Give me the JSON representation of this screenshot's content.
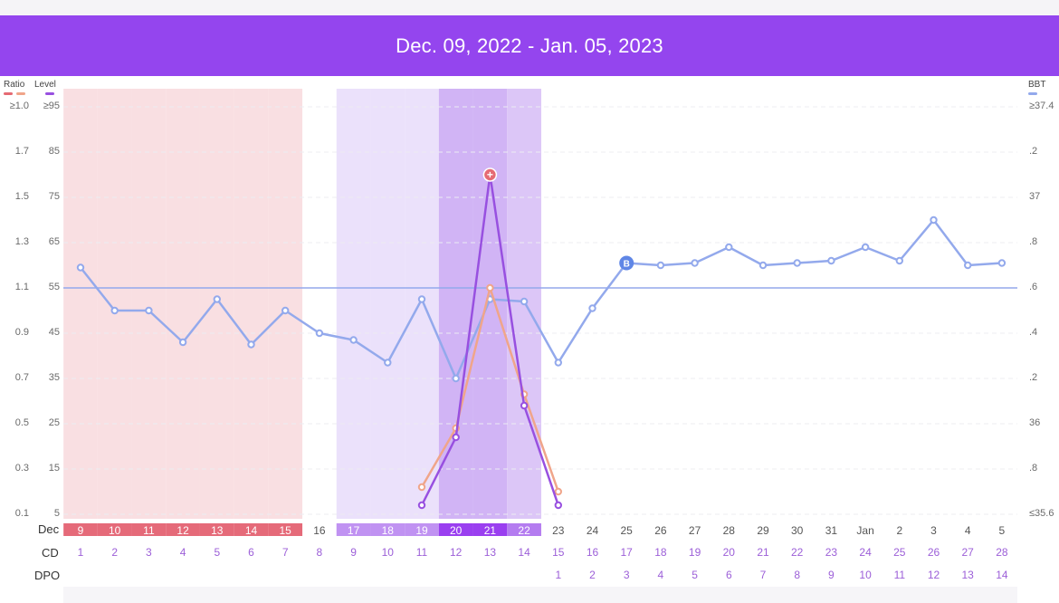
{
  "header": {
    "title": "Dec. 09, 2022 - Jan. 05, 2023"
  },
  "colors": {
    "header_bg": "#9445ee",
    "bbt": "#93a9ec",
    "ratio_red": "#e56a73",
    "ratio_salmon": "#f0a58a",
    "level": "#9850e0",
    "period_band": "#f9dfe2",
    "fertile_band": "#ebe1fb",
    "fertile_mid_band": "#dcc6f7",
    "peak_band": "#d1b4f5"
  },
  "legend": {
    "ratio_label": "Ratio",
    "level_label": "Level",
    "bbt_label": "BBT"
  },
  "axes": {
    "ratio_ticks": [
      "≥1.0",
      "1.7",
      "1.5",
      "1.3",
      "1.1",
      "0.9",
      "0.7",
      "0.5",
      "0.3",
      "0.1"
    ],
    "level_ticks": [
      "≥95",
      "85",
      "75",
      "65",
      "55",
      "45",
      "35",
      "25",
      "15",
      "5"
    ],
    "bbt_ticks": [
      "≥37.4",
      ".2",
      "37",
      ".8",
      ".6",
      ".4",
      ".2",
      "36",
      ".8",
      "≤35.6"
    ]
  },
  "rows": {
    "date_label": "Dec",
    "cd_label": "CD",
    "dpo_label": "DPO"
  },
  "chart_data": {
    "type": "line",
    "x_cycle_days": [
      1,
      2,
      3,
      4,
      5,
      6,
      7,
      8,
      9,
      10,
      11,
      12,
      13,
      14,
      15,
      16,
      17,
      18,
      19,
      20,
      21,
      22,
      23,
      24,
      25,
      26,
      27,
      28
    ],
    "dates": [
      "9",
      "10",
      "11",
      "12",
      "13",
      "14",
      "15",
      "16",
      "17",
      "18",
      "19",
      "20",
      "21",
      "22",
      "23",
      "24",
      "25",
      "26",
      "27",
      "28",
      "29",
      "30",
      "31",
      "Jan",
      "2",
      "3",
      "4",
      "5"
    ],
    "cd": [
      "1",
      "2",
      "3",
      "4",
      "5",
      "6",
      "7",
      "8",
      "9",
      "10",
      "11",
      "12",
      "13",
      "14",
      "15",
      "16",
      "17",
      "18",
      "19",
      "20",
      "21",
      "22",
      "23",
      "24",
      "25",
      "26",
      "27",
      "28"
    ],
    "dpo": [
      "",
      "",
      "",
      "",
      "",
      "",
      "",
      "",
      "",
      "",
      "",
      "",
      "",
      "",
      "1",
      "2",
      "3",
      "4",
      "5",
      "6",
      "7",
      "8",
      "9",
      "10",
      "11",
      "12",
      "13",
      "14"
    ],
    "date_pill_type": [
      "period",
      "period",
      "period",
      "period",
      "period",
      "period",
      "period",
      "none",
      "fertile",
      "fertile",
      "fertile",
      "peak",
      "peak",
      "fertile_mid",
      "none",
      "none",
      "none",
      "none",
      "none",
      "none",
      "none",
      "none",
      "none",
      "none",
      "none",
      "none",
      "none",
      "none"
    ],
    "series": [
      {
        "key": "bbt",
        "name": "BBT",
        "values": [
          36.69,
          36.5,
          36.5,
          36.36,
          36.55,
          36.35,
          36.5,
          36.4,
          36.37,
          36.27,
          36.55,
          36.2,
          36.55,
          36.54,
          36.27,
          36.51,
          36.71,
          36.7,
          36.71,
          36.78,
          36.7,
          36.71,
          36.72,
          36.78,
          36.72,
          36.9,
          36.7,
          36.71
        ]
      },
      {
        "key": "ratio_salmon",
        "name": "Ratio",
        "values": [
          null,
          null,
          null,
          null,
          null,
          null,
          null,
          null,
          null,
          null,
          0.22,
          0.48,
          1.1,
          0.63,
          0.2,
          null,
          null,
          null,
          null,
          null,
          null,
          null,
          null,
          null,
          null,
          null,
          null,
          null
        ]
      },
      {
        "key": "level",
        "name": "Level",
        "values": [
          null,
          null,
          null,
          null,
          null,
          null,
          null,
          null,
          null,
          null,
          7,
          22,
          80,
          29,
          7,
          null,
          null,
          null,
          null,
          null,
          null,
          null,
          null,
          null,
          null,
          null,
          null,
          null
        ]
      }
    ],
    "coverline_bbt": 36.6,
    "ovulation_marker": {
      "cd": 17,
      "label": "B"
    },
    "peak_marker": {
      "cd": 13,
      "label": "+"
    },
    "ratio_range": [
      0.1,
      1.9
    ],
    "level_range": [
      5,
      95
    ],
    "bbt_range": [
      35.6,
      37.4
    ],
    "grid": true
  }
}
